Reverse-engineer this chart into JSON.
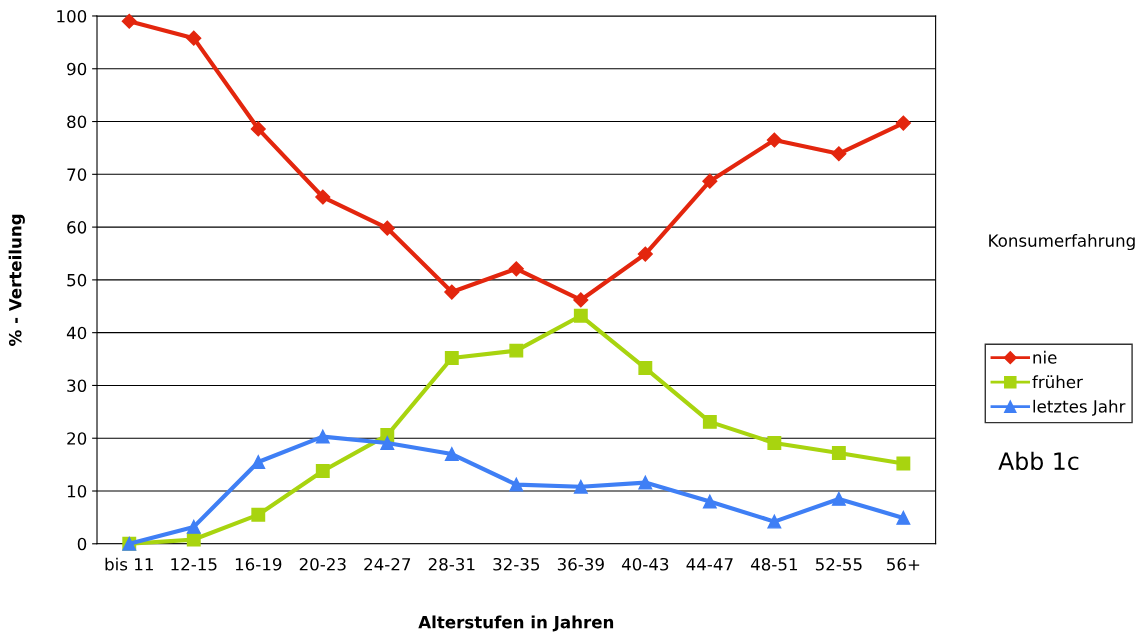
{
  "chart_data": {
    "type": "line",
    "xlabel": "Alterstufen in Jahren",
    "ylabel": "% - Verteilung",
    "legend_title": "Konsumerfahrung",
    "annotations": [
      "Abb 1c"
    ],
    "categories": [
      "bis 11",
      "12-15",
      "16-19",
      "20-23",
      "24-27",
      "28-31",
      "32-35",
      "36-39",
      "40-43",
      "44-47",
      "48-51",
      "52-55",
      "56+"
    ],
    "series": [
      {
        "name": "nie",
        "color": "#e3260e",
        "marker": "diamond",
        "values": [
          99,
          95.8,
          78.6,
          65.7,
          59.8,
          47.7,
          52.1,
          46.2,
          54.9,
          68.7,
          76.5,
          73.9,
          79.7
        ]
      },
      {
        "name": "früher",
        "color": "#a8d40f",
        "marker": "square",
        "values": [
          0,
          0.8,
          5.5,
          13.8,
          20.6,
          35.2,
          36.6,
          43.2,
          33.3,
          23.1,
          19.1,
          17.2,
          15.2
        ]
      },
      {
        "name": "letztes Jahr",
        "color": "#3f7ff5",
        "marker": "triangle",
        "values": [
          0,
          3.2,
          15.5,
          20.3,
          19.1,
          17,
          11.2,
          10.8,
          11.6,
          8,
          4.2,
          8.5,
          4.9
        ]
      }
    ],
    "ylim": [
      0,
      100
    ],
    "yticks": [
      0,
      10,
      20,
      30,
      40,
      50,
      60,
      70,
      80,
      90,
      100
    ],
    "grid": "y",
    "legend": "right"
  }
}
